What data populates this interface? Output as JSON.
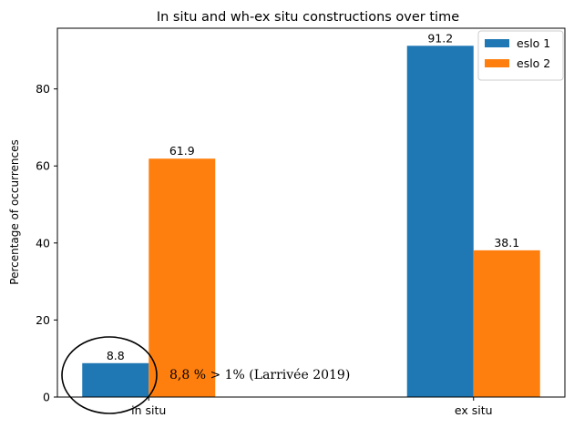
{
  "chart_data": {
    "type": "bar",
    "title": "In situ and wh-ex situ constructions over time",
    "xlabel": "",
    "ylabel": "Percentage of occurrences",
    "categories": [
      "in situ",
      "ex situ"
    ],
    "series": [
      {
        "name": "eslo 1",
        "values": [
          8.8,
          91.2
        ],
        "color": "#1f77b4"
      },
      {
        "name": "eslo 2",
        "values": [
          61.9,
          38.1
        ],
        "color": "#ff7f0e"
      }
    ],
    "data_labels": [
      [
        "8.8",
        "91.2"
      ],
      [
        "61.9",
        "38.1"
      ]
    ],
    "ylim": [
      0,
      95.76
    ],
    "yticks": [
      0,
      20,
      40,
      60,
      80
    ],
    "grid": false,
    "legend_position": "top-right",
    "annotation": {
      "text": "8,8 % > 1% (Larrivée 2019)",
      "target": "in situ / eslo 1",
      "marker": "ellipse"
    }
  }
}
